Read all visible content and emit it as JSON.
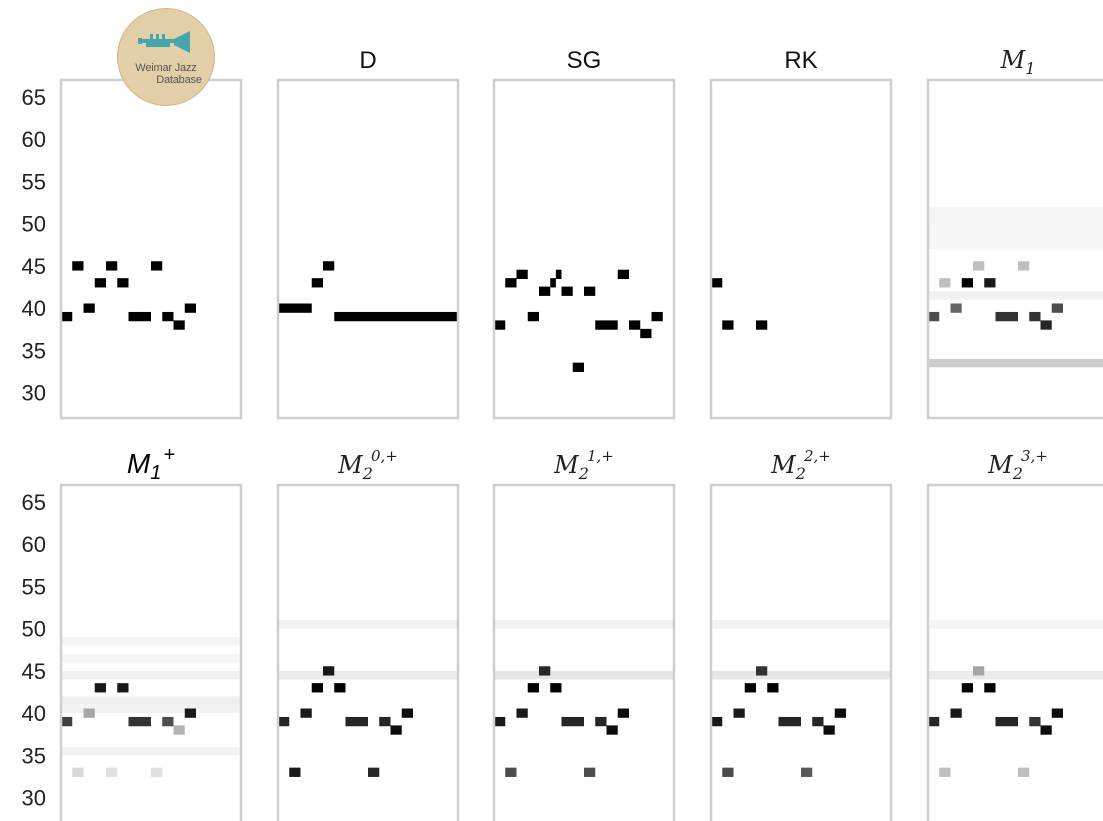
{
  "logo": {
    "line1": "Weimar Jazz",
    "line2": "Database",
    "icon": "trumpet-icon"
  },
  "chart_data": {
    "type": "heatmap",
    "ylim": [
      27,
      67
    ],
    "yticks": [
      30,
      35,
      40,
      45,
      50,
      55,
      60,
      65
    ],
    "ytick_labels": [
      "30",
      "35",
      "40",
      "45",
      "50",
      "55",
      "60",
      "65"
    ],
    "time_steps": 32,
    "colormap": "white-to-black (probability of pitch)",
    "panels": [
      {
        "id": "data",
        "title": "",
        "row": 0,
        "col": 0,
        "notes": [
          [
            0,
            2,
            39
          ],
          [
            2,
            4,
            45
          ],
          [
            4,
            6,
            40
          ],
          [
            6,
            8,
            43
          ],
          [
            8,
            10,
            45
          ],
          [
            10,
            12,
            43
          ],
          [
            12,
            16,
            39
          ],
          [
            16,
            18,
            45
          ],
          [
            18,
            20,
            39
          ],
          [
            20,
            22,
            38
          ],
          [
            22,
            24,
            40
          ]
        ]
      },
      {
        "id": "D",
        "title": "D",
        "row": 0,
        "col": 1,
        "notes": [
          [
            0,
            6,
            40
          ],
          [
            6,
            8,
            43
          ],
          [
            8,
            10,
            45
          ],
          [
            10,
            32,
            39
          ]
        ]
      },
      {
        "id": "SG",
        "title": "SG",
        "row": 0,
        "col": 2,
        "notes": [
          [
            0,
            2,
            38
          ],
          [
            2,
            4,
            43
          ],
          [
            4,
            6,
            44
          ],
          [
            6,
            8,
            39
          ],
          [
            8,
            10,
            42
          ],
          [
            10,
            11,
            43
          ],
          [
            11,
            12,
            44
          ],
          [
            12,
            14,
            42
          ],
          [
            14,
            16,
            33
          ],
          [
            16,
            18,
            42
          ],
          [
            18,
            22,
            38
          ],
          [
            22,
            24,
            44
          ],
          [
            24,
            26,
            38
          ],
          [
            26,
            28,
            37
          ],
          [
            28,
            30,
            39
          ]
        ]
      },
      {
        "id": "RK",
        "title": "RK",
        "row": 0,
        "col": 3,
        "notes": [
          [
            0,
            2,
            43
          ],
          [
            2,
            4,
            38
          ],
          [
            8,
            10,
            38
          ]
        ]
      },
      {
        "id": "M1",
        "title": "M",
        "title_sub": "1",
        "title_sup": "",
        "row": 0,
        "col": 4,
        "notes": [
          [
            0,
            2,
            39,
            0.7
          ],
          [
            2,
            4,
            43,
            0.25
          ],
          [
            4,
            6,
            40,
            0.6
          ],
          [
            6,
            8,
            43,
            1
          ],
          [
            8,
            10,
            45,
            0.25
          ],
          [
            10,
            12,
            43,
            0.9
          ],
          [
            12,
            16,
            39,
            0.8
          ],
          [
            16,
            18,
            45,
            0.25
          ],
          [
            18,
            20,
            39,
            0.8
          ],
          [
            20,
            22,
            38,
            0.85
          ],
          [
            22,
            24,
            40,
            0.7
          ]
        ],
        "background": [
          [
            50,
            52,
            0.04
          ],
          [
            47,
            50,
            0.03
          ],
          [
            33,
            34,
            0.2
          ],
          [
            41,
            42,
            0.05
          ]
        ]
      },
      {
        "id": "M1plus",
        "title": "M",
        "title_sub": "1",
        "title_sup": "+",
        "row": 1,
        "col": 0,
        "notes": [
          [
            0,
            2,
            39,
            0.75
          ],
          [
            2,
            4,
            33,
            0.15
          ],
          [
            4,
            6,
            40,
            0.35
          ],
          [
            6,
            8,
            43,
            0.9
          ],
          [
            8,
            10,
            33,
            0.12
          ],
          [
            10,
            12,
            43,
            0.9
          ],
          [
            12,
            16,
            39,
            0.8
          ],
          [
            16,
            18,
            33,
            0.12
          ],
          [
            18,
            20,
            39,
            0.7
          ],
          [
            20,
            22,
            38,
            0.3
          ],
          [
            22,
            24,
            40,
            0.9
          ]
        ],
        "background": [
          [
            48,
            49,
            0.04
          ],
          [
            46,
            47,
            0.04
          ],
          [
            44,
            45,
            0.06
          ],
          [
            41,
            42,
            0.06
          ],
          [
            40,
            41,
            0.05
          ],
          [
            35,
            36,
            0.05
          ]
        ]
      },
      {
        "id": "M2_0",
        "title": "M",
        "title_sub": "2",
        "title_sup": "0,+",
        "row": 1,
        "col": 1,
        "notes": [
          [
            0,
            2,
            39,
            0.85
          ],
          [
            2,
            4,
            33,
            0.9
          ],
          [
            4,
            6,
            40,
            0.9
          ],
          [
            6,
            8,
            43,
            1
          ],
          [
            8,
            10,
            45,
            0.9
          ],
          [
            10,
            12,
            43,
            1
          ],
          [
            12,
            16,
            39,
            0.85
          ],
          [
            16,
            18,
            33,
            0.85
          ],
          [
            18,
            20,
            39,
            0.85
          ],
          [
            20,
            22,
            38,
            0.95
          ],
          [
            22,
            24,
            40,
            0.95
          ]
        ],
        "background": [
          [
            50,
            51,
            0.05
          ],
          [
            44,
            45,
            0.08
          ]
        ]
      },
      {
        "id": "M2_1",
        "title": "M",
        "title_sub": "2",
        "title_sup": "1,+",
        "row": 1,
        "col": 2,
        "notes": [
          [
            0,
            2,
            39,
            0.9
          ],
          [
            2,
            4,
            33,
            0.7
          ],
          [
            4,
            6,
            40,
            0.9
          ],
          [
            6,
            8,
            43,
            1
          ],
          [
            8,
            10,
            45,
            0.85
          ],
          [
            10,
            12,
            43,
            1
          ],
          [
            12,
            16,
            39,
            0.85
          ],
          [
            16,
            18,
            33,
            0.7
          ],
          [
            18,
            20,
            39,
            0.85
          ],
          [
            20,
            22,
            38,
            0.95
          ],
          [
            22,
            24,
            40,
            0.95
          ]
        ],
        "background": [
          [
            50,
            51,
            0.05
          ],
          [
            44,
            45,
            0.1
          ]
        ]
      },
      {
        "id": "M2_2",
        "title": "M",
        "title_sub": "2",
        "title_sup": "2,+",
        "row": 1,
        "col": 3,
        "notes": [
          [
            0,
            2,
            39,
            0.9
          ],
          [
            2,
            4,
            33,
            0.7
          ],
          [
            4,
            6,
            40,
            0.9
          ],
          [
            6,
            8,
            43,
            1
          ],
          [
            8,
            10,
            45,
            0.8
          ],
          [
            10,
            12,
            43,
            1
          ],
          [
            12,
            16,
            39,
            0.85
          ],
          [
            16,
            18,
            33,
            0.65
          ],
          [
            18,
            20,
            39,
            0.85
          ],
          [
            20,
            22,
            38,
            0.95
          ],
          [
            22,
            24,
            40,
            0.95
          ]
        ],
        "background": [
          [
            50,
            51,
            0.05
          ],
          [
            44,
            45,
            0.1
          ]
        ]
      },
      {
        "id": "M2_3",
        "title": "M",
        "title_sub": "2",
        "title_sup": "3,+",
        "row": 1,
        "col": 4,
        "notes": [
          [
            0,
            2,
            39,
            0.85
          ],
          [
            2,
            4,
            33,
            0.25
          ],
          [
            4,
            6,
            40,
            0.9
          ],
          [
            6,
            8,
            43,
            1
          ],
          [
            8,
            10,
            45,
            0.35
          ],
          [
            10,
            12,
            43,
            1
          ],
          [
            12,
            16,
            39,
            0.85
          ],
          [
            16,
            18,
            33,
            0.25
          ],
          [
            18,
            20,
            39,
            0.8
          ],
          [
            20,
            22,
            38,
            0.95
          ],
          [
            22,
            24,
            40,
            0.95
          ]
        ],
        "background": [
          [
            50,
            51,
            0.04
          ],
          [
            44,
            45,
            0.08
          ]
        ]
      }
    ]
  }
}
